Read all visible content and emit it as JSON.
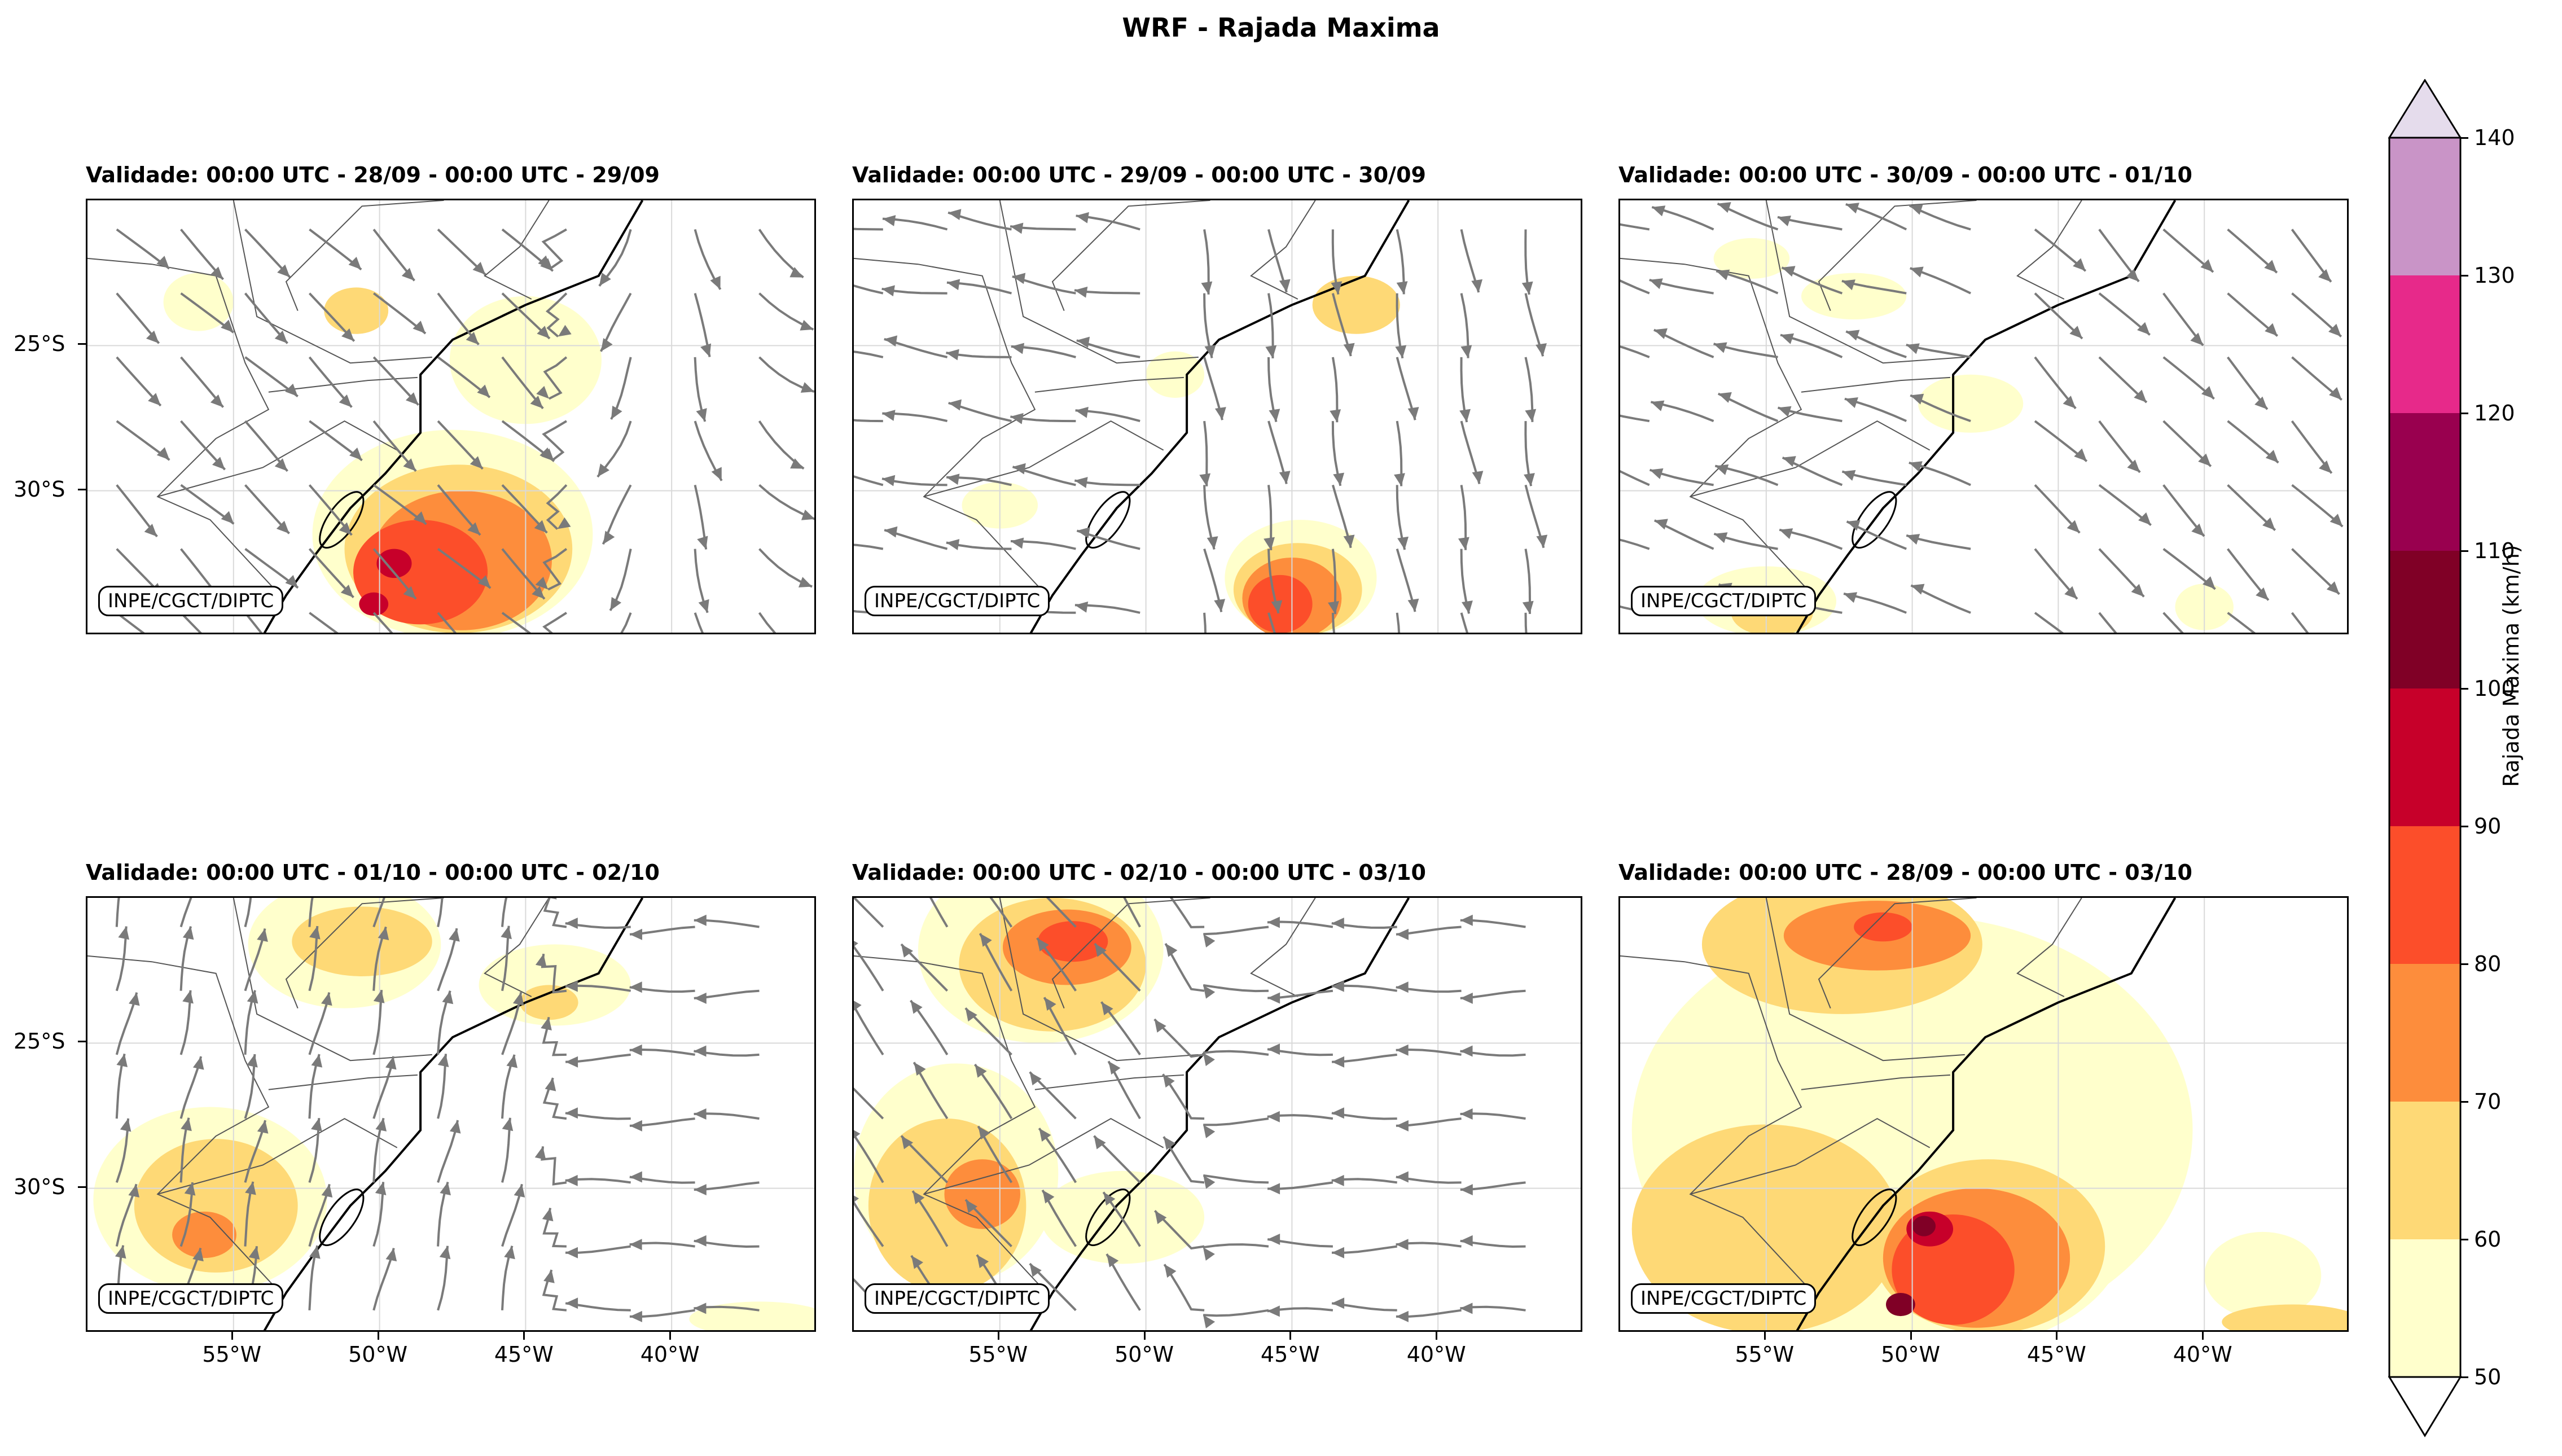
{
  "figure": {
    "title": "WRF - Rajada Maxima"
  },
  "credit_text": "INPE/CGCT/DIPTC",
  "panels": [
    {
      "title": "Validade: 00:00 UTC - 28/09 - 00:00 UTC - 29/09",
      "show_xticks": false,
      "show_yticks": true
    },
    {
      "title": "Validade: 00:00 UTC - 29/09 - 00:00 UTC - 30/09",
      "show_xticks": false,
      "show_yticks": false
    },
    {
      "title": "Validade: 00:00 UTC - 30/09 - 00:00 UTC - 01/10",
      "show_xticks": false,
      "show_yticks": false
    },
    {
      "title": "Validade: 00:00 UTC - 01/10 - 00:00 UTC - 02/10",
      "show_xticks": true,
      "show_yticks": true
    },
    {
      "title": "Validade: 00:00 UTC - 02/10 - 00:00 UTC - 03/10",
      "show_xticks": true,
      "show_yticks": false
    },
    {
      "title": "Validade: 00:00 UTC - 28/09 - 00:00 UTC - 03/10",
      "show_xticks": true,
      "show_yticks": false
    }
  ],
  "axes": {
    "x_ticks": [
      "55°W",
      "50°W",
      "45°W",
      "40°W"
    ],
    "y_ticks": [
      "25°S",
      "30°S"
    ]
  },
  "colorbar": {
    "label": "Rajada Maxima (km/h)",
    "ticks": [
      "50",
      "60",
      "70",
      "80",
      "90",
      "100",
      "110",
      "120",
      "130",
      "140"
    ],
    "colors": [
      "#ffffcc",
      "#fed976",
      "#fd8d3c",
      "#fc4e2a",
      "#c7002a",
      "#800026",
      "#99004f",
      "#e7298a",
      "#c994c7",
      "#e5dcec"
    ]
  },
  "map_colors": {
    "streamline": "#7a7a7a",
    "coast": "#000000",
    "border": "#555555",
    "grid": "#d9d9d9"
  }
}
